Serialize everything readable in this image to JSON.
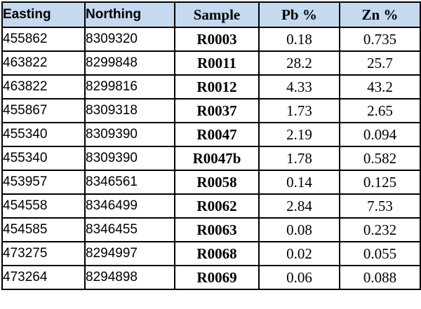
{
  "table": {
    "headers": [
      "Easting",
      "Northing",
      "Sample",
      "Pb %",
      "Zn %"
    ],
    "rows": [
      [
        "455862",
        "8309320",
        "R0003",
        "0.18",
        "0.735"
      ],
      [
        "463822",
        "8299848",
        "R0011",
        "28.2",
        "25.7"
      ],
      [
        "463822",
        "8299816",
        "R0012",
        "4.33",
        "43.2"
      ],
      [
        "455867",
        "8309318",
        "R0037",
        "1.73",
        "2.65"
      ],
      [
        "455340",
        "8309390",
        "R0047",
        "2.19",
        "0.094"
      ],
      [
        "455340",
        "8309390",
        "R0047b",
        "1.78",
        "0.582"
      ],
      [
        "453957",
        "8346561",
        "R0058",
        "0.14",
        "0.125"
      ],
      [
        "454558",
        "8346499",
        "R0062",
        "2.84",
        "7.53"
      ],
      [
        "454585",
        "8346455",
        "R0063",
        "0.08",
        "0.232"
      ],
      [
        "473275",
        "8294997",
        "R0068",
        "0.02",
        "0.055"
      ],
      [
        "473264",
        "8294898",
        "R0069",
        "0.06",
        "0.088"
      ]
    ]
  },
  "colors": {
    "header_background": "#c5d9ef",
    "border": "#000000"
  }
}
